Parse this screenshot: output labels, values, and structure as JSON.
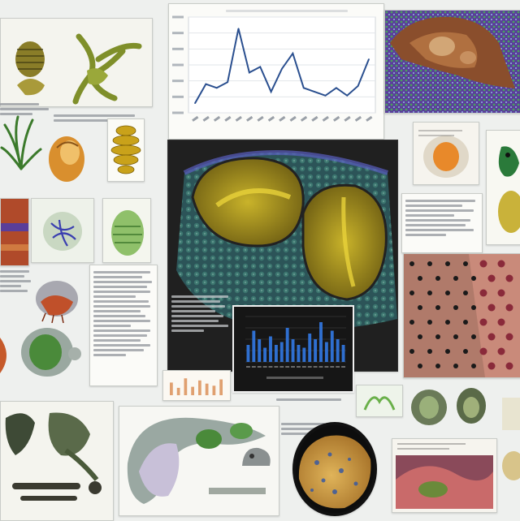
{
  "page": {
    "background": "#eef0ee"
  },
  "texts": {
    "caption_center": "",
    "caption_bottom": "",
    "caption_right": ""
  },
  "colors": {
    "line_series": "#2a4f8f",
    "bar_series": "#2f6fd0",
    "tissue_blue": "#4a4fb0",
    "specimen_gold": "#c9a21a",
    "leaf_green": "#3b7a2b"
  },
  "chart_data": [
    {
      "type": "line",
      "x": [
        1,
        2,
        3,
        4,
        5,
        6,
        7,
        8,
        9,
        10,
        11,
        12,
        13,
        14,
        15,
        16,
        17
      ],
      "series": [
        {
          "values": [
            10,
            30,
            26,
            32,
            88,
            42,
            48,
            22,
            46,
            62,
            26,
            22,
            18,
            26,
            18,
            28,
            56
          ]
        }
      ],
      "ylim": [
        0,
        100
      ],
      "grid": true
    },
    {
      "type": "bar",
      "x": [
        1,
        2,
        3,
        4,
        5,
        6,
        7,
        8,
        9,
        10,
        11,
        12,
        13,
        14,
        15,
        16,
        17,
        18
      ],
      "series": [
        {
          "values": [
            30,
            55,
            40,
            25,
            45,
            30,
            35,
            60,
            40,
            30,
            25,
            50,
            40,
            70,
            35,
            55,
            40,
            30
          ]
        }
      ],
      "ylim": [
        0,
        80
      ],
      "grid": true
    },
    {
      "type": "bar",
      "x": [
        1,
        2,
        3,
        4,
        5,
        6,
        7,
        8
      ],
      "series": [
        {
          "values": [
            60,
            35,
            80,
            40,
            70,
            55,
            45,
            75
          ]
        }
      ],
      "ylim": [
        0,
        100
      ]
    }
  ]
}
